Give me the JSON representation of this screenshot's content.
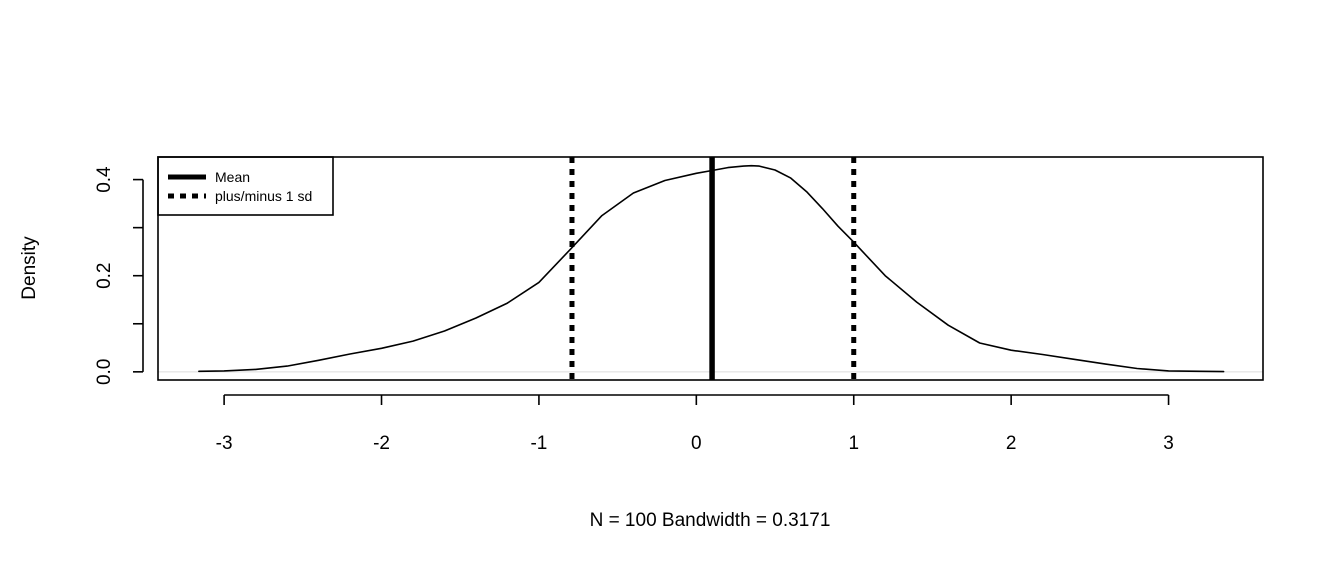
{
  "chart_data": {
    "type": "line",
    "title": "",
    "xlabel": "N = 100   Bandwidth = 0.3171",
    "ylabel": "Density",
    "xlim": [
      -3.42,
      3.6
    ],
    "ylim": [
      -0.017,
      0.447
    ],
    "xticks": [
      -3,
      -2,
      -1,
      0,
      1,
      2,
      3
    ],
    "xtick_labels": [
      "-3",
      "-2",
      "-1",
      "0",
      "1",
      "2",
      "3"
    ],
    "yticks": [
      0.0,
      0.1,
      0.2,
      0.3,
      0.4
    ],
    "ytick_labels": [
      "0.0",
      "",
      "0.2",
      "",
      "0.4"
    ],
    "grid": false,
    "series": [
      {
        "name": "",
        "style": "solid",
        "x": [
          -3.16,
          -3.0,
          -2.8,
          -2.6,
          -2.4,
          -2.2,
          -2.0,
          -1.8,
          -1.6,
          -1.4,
          -1.2,
          -1.0,
          -0.8,
          -0.6,
          -0.4,
          -0.2,
          0.0,
          0.1,
          0.2,
          0.3,
          0.35,
          0.4,
          0.5,
          0.6,
          0.7,
          0.8,
          0.9,
          1.0,
          1.2,
          1.4,
          1.6,
          1.8,
          2.0,
          2.2,
          2.4,
          2.6,
          2.8,
          3.0,
          3.2,
          3.35
        ],
        "y": [
          0.001,
          0.002,
          0.005,
          0.012,
          0.024,
          0.037,
          0.049,
          0.064,
          0.085,
          0.112,
          0.143,
          0.186,
          0.255,
          0.325,
          0.372,
          0.398,
          0.413,
          0.419,
          0.425,
          0.428,
          0.429,
          0.428,
          0.42,
          0.403,
          0.375,
          0.34,
          0.303,
          0.27,
          0.2,
          0.145,
          0.097,
          0.06,
          0.045,
          0.036,
          0.026,
          0.016,
          0.007,
          0.002,
          0.001,
          0.0005
        ]
      }
    ],
    "vlines": [
      {
        "x": 0.1,
        "style": "solid",
        "legend": "Mean"
      },
      {
        "x": -0.79,
        "style": "dashed",
        "legend": "plus/minus 1 sd"
      },
      {
        "x": 1.0,
        "style": "dashed",
        "legend": "plus/minus 1 sd"
      }
    ],
    "legend": {
      "position": "top-left",
      "entries": [
        {
          "label": "Mean",
          "style": "solid"
        },
        {
          "label": "plus/minus 1 sd",
          "style": "dashed"
        }
      ]
    },
    "colors": {
      "line": "#000000",
      "baseline": "#e6e6e6",
      "background": "#ffffff"
    }
  }
}
